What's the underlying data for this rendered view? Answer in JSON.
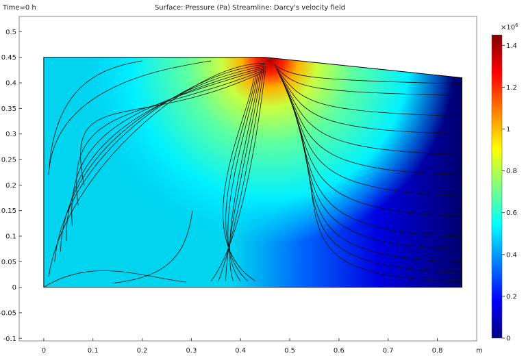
{
  "chart_data": {
    "type": "heatmap",
    "time_label": "Time=0 h",
    "title": "Surface: Pressure (Pa)  Streamline: Darcy's velocity field",
    "x_unit": "m",
    "xlim": [
      -0.05,
      0.88
    ],
    "ylim": [
      -0.105,
      0.53
    ],
    "x_ticks": [
      0,
      0.1,
      0.2,
      0.3,
      0.4,
      0.5,
      0.6,
      0.7,
      0.8
    ],
    "y_ticks": [
      -0.1,
      -0.05,
      0,
      0.05,
      0.1,
      0.15,
      0.2,
      0.25,
      0.3,
      0.35,
      0.4,
      0.45,
      0.5
    ],
    "domain_outline": [
      [
        0,
        0
      ],
      [
        0.85,
        0
      ],
      [
        0.85,
        0.41
      ],
      [
        0.45,
        0.45
      ],
      [
        0,
        0.45
      ]
    ],
    "pressure_source": [
      0.46,
      0.445
    ],
    "colorbar": {
      "multiplier": "×10",
      "exponent": "6",
      "ticks": [
        0,
        0.2,
        0.4,
        0.6,
        0.8,
        1,
        1.2,
        1.4
      ],
      "range": [
        0,
        1.45
      ],
      "colormap": [
        "#00007f",
        "#0000ff",
        "#007fff",
        "#00ffff",
        "#7fff7f",
        "#ffff00",
        "#ff7f00",
        "#ff0000",
        "#7f0000"
      ]
    },
    "grid": false,
    "legend": "colorbar-right"
  }
}
